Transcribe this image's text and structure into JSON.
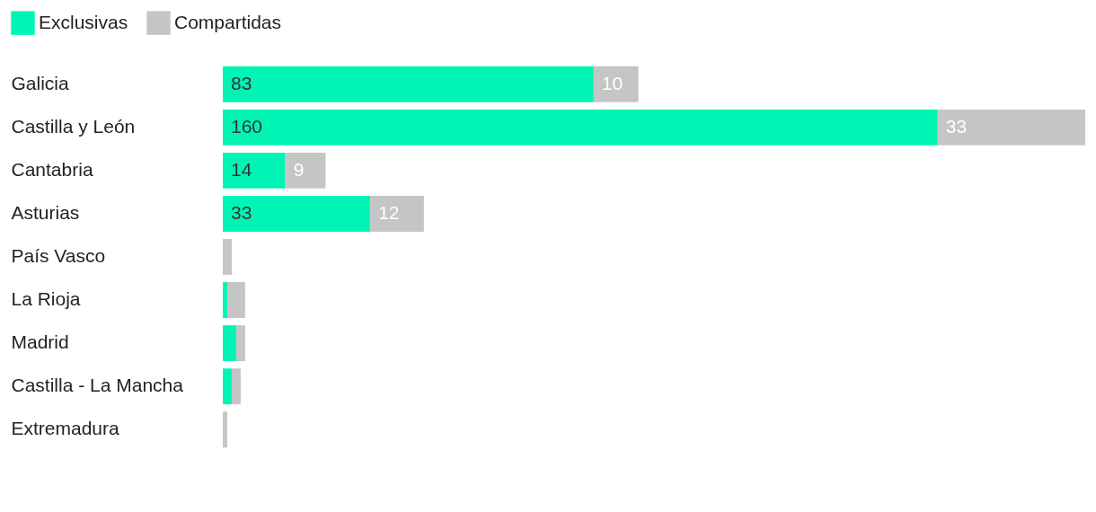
{
  "chart_data": {
    "type": "bar",
    "orientation": "horizontal",
    "stacked": true,
    "legend": "top left",
    "categories": [
      "Galicia",
      "Castilla y León",
      "Cantabria",
      "Asturias",
      "País Vasco",
      "La Rioja",
      "Madrid",
      "Castilla - La Mancha",
      "Extremadura"
    ],
    "series": [
      {
        "name": "Exclusivas",
        "color": "#00f5b4",
        "values": [
          83,
          160,
          14,
          33,
          0,
          1,
          3,
          2,
          0
        ],
        "value_labels": [
          "83",
          "160",
          "14",
          "33",
          null,
          null,
          null,
          null,
          null
        ]
      },
      {
        "name": "Compartidas",
        "color": "#c5c5c5",
        "values": [
          10,
          33,
          9,
          12,
          2,
          4,
          2,
          2,
          1
        ],
        "value_labels": [
          "10",
          "33",
          "9",
          "12",
          null,
          null,
          null,
          null,
          null
        ]
      }
    ]
  }
}
